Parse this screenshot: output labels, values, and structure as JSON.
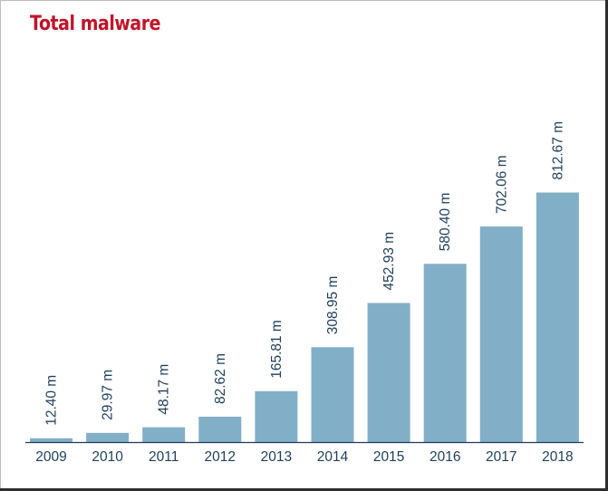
{
  "colors": {
    "title": "#c0142a",
    "bar": "#82afc8",
    "text": "#1f3f5b",
    "baseline": "#1f3f5b"
  },
  "chart_data": {
    "type": "bar",
    "title": "Total malware",
    "xlabel": "",
    "ylabel": "",
    "categories": [
      "2009",
      "2010",
      "2011",
      "2012",
      "2013",
      "2014",
      "2015",
      "2016",
      "2017",
      "2018"
    ],
    "values": [
      12.4,
      29.97,
      48.17,
      82.62,
      165.81,
      308.95,
      452.93,
      580.4,
      702.06,
      812.67
    ],
    "data_labels": [
      "12.40 m",
      "29.97 m",
      "48.17 m",
      "82.62 m",
      "165.81 m",
      "308.95 m",
      "452.93 m",
      "580.40 m",
      "702.06 m",
      "812.67 m"
    ],
    "ylim": [
      0,
      1000
    ],
    "grid": false,
    "legend": "none"
  }
}
